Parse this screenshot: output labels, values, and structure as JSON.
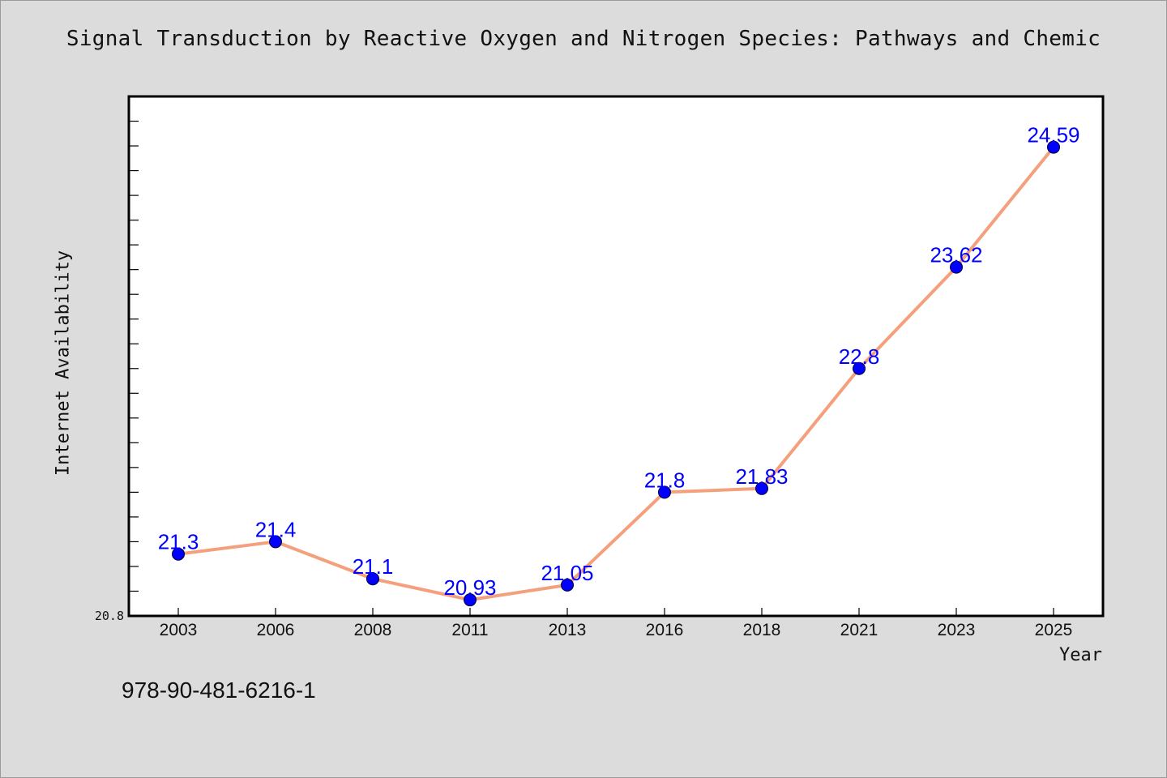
{
  "chart_data": {
    "type": "line",
    "title": "Signal Transduction by Reactive Oxygen and Nitrogen Species: Pathways and Chemic",
    "xlabel": "Year",
    "ylabel": "Internet Availability",
    "categories": [
      "2003",
      "2006",
      "2008",
      "2011",
      "2013",
      "2016",
      "2018",
      "2021",
      "2023",
      "2025"
    ],
    "series": [
      {
        "values": [
          21.3,
          21.4,
          21.1,
          20.93,
          21.05,
          21.8,
          21.83,
          22.8,
          23.62,
          24.59
        ],
        "labels": [
          "21.3",
          "21.4",
          "21.1",
          "20.93",
          "21.05",
          "21.8",
          "21.83",
          "22.8",
          "23.62",
          "24.59"
        ]
      }
    ],
    "ylim": [
      20.8,
      25.0
    ],
    "y_tick_labels": [
      "20.8"
    ],
    "grid": false,
    "line_color": "#f4a07c",
    "marker_color": "#0000ff",
    "label_color": "#0000ff"
  },
  "footer": {
    "isbn": "978-90-481-6216-1"
  }
}
